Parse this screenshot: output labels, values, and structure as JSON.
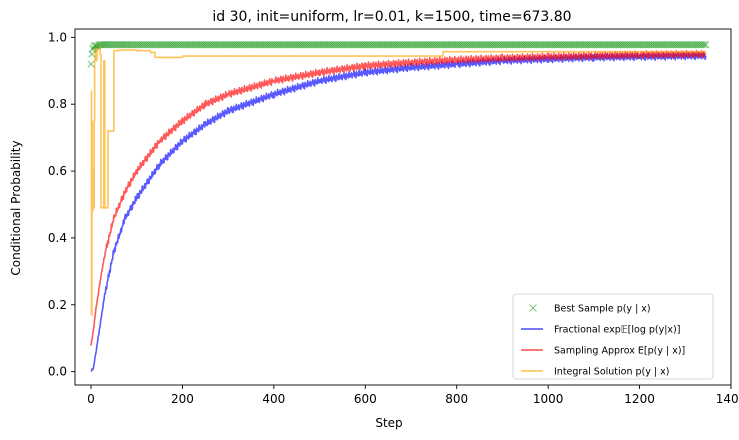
{
  "chart_data": {
    "type": "line",
    "title": "id 30, init=uniform, lr=0.01, k=1500, time=673.80",
    "xlabel": "Step",
    "ylabel": "Conditional Probability",
    "xlim": [
      -35,
      1400
    ],
    "ylim": [
      -0.04,
      1.025
    ],
    "xticks": [
      0,
      200,
      400,
      600,
      800,
      1000,
      1200,
      1400
    ],
    "yticks": [
      0.0,
      0.2,
      0.4,
      0.6,
      0.8,
      1.0
    ],
    "xtick_labels": [
      "0",
      "200",
      "400",
      "600",
      "800",
      "1000",
      "1200",
      "1400"
    ],
    "ytick_labels": [
      "0.0",
      "0.2",
      "0.4",
      "0.6",
      "0.8",
      "1.0"
    ],
    "grid": false,
    "legend_position": "bottom-right",
    "legend": [
      "Best Sample p(y | x)",
      "Fractional exp𝔼[log p(y|x)]",
      "Sampling Approx E[p(y | x)]",
      "Integral Solution p(y | x)"
    ],
    "series": [
      {
        "name": "Best Sample p(y | x)",
        "marker": "x",
        "color": "#2ca02c",
        "x": [
          0,
          2,
          4,
          6,
          8,
          10,
          14,
          18,
          25,
          35,
          50,
          80,
          120,
          200,
          400,
          800,
          1200,
          1345
        ],
        "y": [
          0.92,
          0.95,
          0.965,
          0.97,
          0.975,
          0.975,
          0.975,
          0.978,
          0.978,
          0.978,
          0.978,
          0.978,
          0.978,
          0.978,
          0.978,
          0.978,
          0.978,
          0.978
        ]
      },
      {
        "name": "Fractional exp𝔼[log p(y|x)]",
        "color": "#0000ff",
        "x": [
          0,
          5,
          10,
          20,
          30,
          50,
          75,
          100,
          150,
          200,
          250,
          300,
          400,
          500,
          600,
          700,
          800,
          900,
          1000,
          1100,
          1200,
          1345
        ],
        "y": [
          0.0,
          0.01,
          0.05,
          0.14,
          0.23,
          0.36,
          0.46,
          0.52,
          0.62,
          0.69,
          0.74,
          0.78,
          0.83,
          0.87,
          0.895,
          0.91,
          0.92,
          0.93,
          0.935,
          0.94,
          0.942,
          0.945
        ]
      },
      {
        "name": "Sampling Approx E[p(y | x)]",
        "color": "#ff0000",
        "x": [
          0,
          5,
          10,
          20,
          30,
          50,
          75,
          100,
          150,
          200,
          250,
          300,
          400,
          500,
          600,
          700,
          800,
          900,
          1000,
          1100,
          1200,
          1345
        ],
        "y": [
          0.08,
          0.12,
          0.18,
          0.27,
          0.35,
          0.46,
          0.54,
          0.6,
          0.69,
          0.75,
          0.8,
          0.83,
          0.87,
          0.895,
          0.915,
          0.925,
          0.933,
          0.938,
          0.942,
          0.945,
          0.948,
          0.95
        ]
      },
      {
        "name": "Integral Solution p(y | x)",
        "color": "#ffa500",
        "x": [
          0,
          1,
          2,
          3,
          4,
          5,
          6,
          7,
          8,
          9,
          12,
          13,
          15,
          17,
          20,
          22,
          25,
          28,
          30,
          32,
          35,
          37,
          40,
          45,
          50,
          55,
          60,
          70,
          90,
          100,
          130,
          140,
          150,
          200,
          300,
          500,
          760,
          770,
          800,
          1000,
          1200,
          1345
        ],
        "y": [
          0.84,
          0.17,
          0.75,
          0.48,
          0.6,
          0.55,
          0.49,
          0.75,
          0.93,
          0.97,
          0.93,
          0.96,
          0.98,
          0.97,
          0.95,
          0.49,
          0.49,
          0.93,
          0.49,
          0.49,
          0.49,
          0.72,
          0.72,
          0.72,
          0.96,
          0.96,
          0.962,
          0.962,
          0.962,
          0.96,
          0.955,
          0.94,
          0.94,
          0.944,
          0.944,
          0.944,
          0.944,
          0.957,
          0.957,
          0.957,
          0.957,
          0.957
        ]
      }
    ]
  }
}
